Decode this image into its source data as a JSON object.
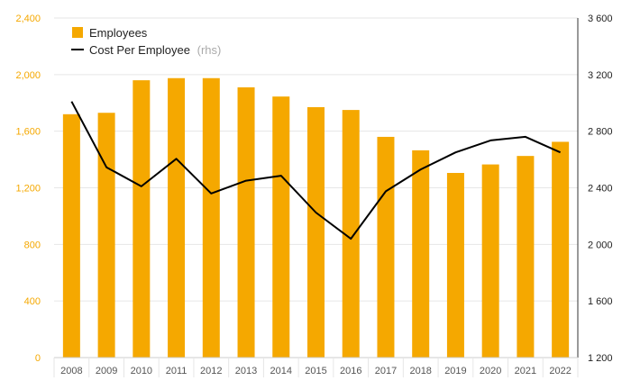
{
  "chart_data": {
    "type": "bar",
    "categories": [
      "2008",
      "2009",
      "2010",
      "2011",
      "2012",
      "2013",
      "2014",
      "2015",
      "2016",
      "2017",
      "2018",
      "2019",
      "2020",
      "2021",
      "2022"
    ],
    "series": [
      {
        "name": "Employees",
        "type": "bar",
        "axis": "left",
        "color": "#F5A800",
        "values": [
          1720,
          1730,
          1960,
          1975,
          1975,
          1910,
          1845,
          1770,
          1750,
          1560,
          1465,
          1305,
          1365,
          1425,
          1525
        ]
      },
      {
        "name": "Cost Per Employee",
        "name_suffix": "(rhs)",
        "type": "line",
        "axis": "right",
        "color": "#000000",
        "values": [
          3010,
          2545,
          2410,
          2605,
          2360,
          2450,
          2485,
          2225,
          2040,
          2375,
          2530,
          2650,
          2735,
          2760,
          2650
        ]
      }
    ],
    "ylim_left": [
      0,
      2400
    ],
    "yticks_left": [
      "0",
      "400",
      "800",
      "1,200",
      "1,600",
      "2,000",
      "2,400"
    ],
    "yticks_left_values": [
      0,
      400,
      800,
      1200,
      1600,
      2000,
      2400
    ],
    "ylim_right": [
      1200,
      3600
    ],
    "yticks_right": [
      "1 200",
      "1 600",
      "2 000",
      "2 400",
      "2 800",
      "3 200",
      "3 600"
    ],
    "yticks_right_values": [
      1200,
      1600,
      2000,
      2400,
      2800,
      3200,
      3600
    ],
    "grid": true,
    "legend_position": "top-left",
    "title": "",
    "xlabel": "",
    "ylabel": ""
  }
}
